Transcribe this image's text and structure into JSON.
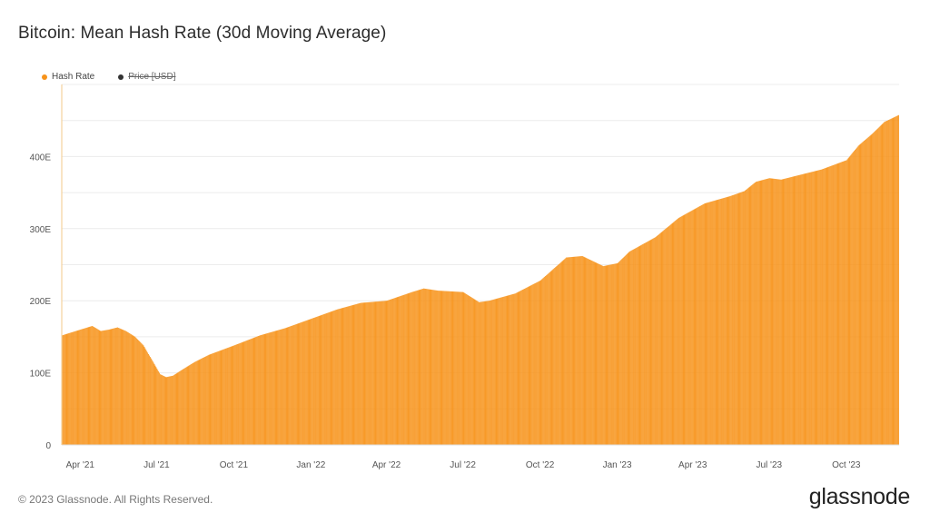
{
  "title": "Bitcoin: Mean Hash Rate (30d Moving Average)",
  "legend": [
    {
      "label": "Hash Rate",
      "color": "#f7931a",
      "enabled": true
    },
    {
      "label": "Price [USD]",
      "color": "#333333",
      "enabled": false
    }
  ],
  "footer": "© 2023 Glassnode. All Rights Reserved.",
  "brand": "glassnode",
  "chart_data": {
    "type": "bar",
    "title": "Bitcoin: Mean Hash Rate (30d Moving Average)",
    "series": [
      {
        "name": "Hash Rate",
        "color": "#f7931a"
      }
    ],
    "y_tick_labels": [
      "0",
      "100E",
      "200E",
      "300E",
      "400E"
    ],
    "y_ticks": [
      0,
      100,
      200,
      300,
      400
    ],
    "ylim": [
      0,
      500
    ],
    "x_tick_labels": [
      "Apr '21",
      "Jul '21",
      "Oct '21",
      "Jan '22",
      "Apr '22",
      "Jul '22",
      "Oct '22",
      "Jan '23",
      "Apr '23",
      "Jul '23",
      "Oct '23"
    ],
    "x_ticks": [
      "2021-04-01",
      "2021-07-01",
      "2021-10-01",
      "2022-01-01",
      "2022-04-01",
      "2022-07-01",
      "2022-10-01",
      "2023-01-01",
      "2023-04-01",
      "2023-07-01",
      "2023-10-01"
    ],
    "xlim": [
      "2021-03-10",
      "2023-12-03"
    ],
    "points": [
      [
        "2021-03-10",
        152
      ],
      [
        "2021-04-01",
        160
      ],
      [
        "2021-04-15",
        165
      ],
      [
        "2021-04-25",
        158
      ],
      [
        "2021-05-05",
        160
      ],
      [
        "2021-05-15",
        163
      ],
      [
        "2021-05-25",
        158
      ],
      [
        "2021-06-05",
        150
      ],
      [
        "2021-06-15",
        138
      ],
      [
        "2021-06-25",
        118
      ],
      [
        "2021-07-05",
        98
      ],
      [
        "2021-07-12",
        94
      ],
      [
        "2021-07-20",
        96
      ],
      [
        "2021-08-01",
        105
      ],
      [
        "2021-08-15",
        115
      ],
      [
        "2021-09-01",
        125
      ],
      [
        "2021-10-01",
        138
      ],
      [
        "2021-11-01",
        152
      ],
      [
        "2021-12-01",
        162
      ],
      [
        "2022-01-01",
        175
      ],
      [
        "2022-02-01",
        188
      ],
      [
        "2022-03-01",
        197
      ],
      [
        "2022-04-01",
        200
      ],
      [
        "2022-05-01",
        212
      ],
      [
        "2022-05-15",
        217
      ],
      [
        "2022-06-01",
        214
      ],
      [
        "2022-07-01",
        212
      ],
      [
        "2022-07-20",
        198
      ],
      [
        "2022-08-01",
        200
      ],
      [
        "2022-09-01",
        210
      ],
      [
        "2022-10-01",
        228
      ],
      [
        "2022-11-01",
        260
      ],
      [
        "2022-11-20",
        262
      ],
      [
        "2022-12-15",
        248
      ],
      [
        "2023-01-01",
        252
      ],
      [
        "2023-01-15",
        268
      ],
      [
        "2023-02-15",
        288
      ],
      [
        "2023-03-15",
        315
      ],
      [
        "2023-04-15",
        335
      ],
      [
        "2023-05-15",
        345
      ],
      [
        "2023-06-01",
        352
      ],
      [
        "2023-06-15",
        365
      ],
      [
        "2023-07-01",
        370
      ],
      [
        "2023-07-15",
        368
      ],
      [
        "2023-08-01",
        373
      ],
      [
        "2023-09-01",
        382
      ],
      [
        "2023-10-01",
        395
      ],
      [
        "2023-10-15",
        415
      ],
      [
        "2023-11-01",
        432
      ],
      [
        "2023-11-15",
        448
      ],
      [
        "2023-12-03",
        458
      ]
    ],
    "grid": true,
    "legend_position": "top-left"
  }
}
